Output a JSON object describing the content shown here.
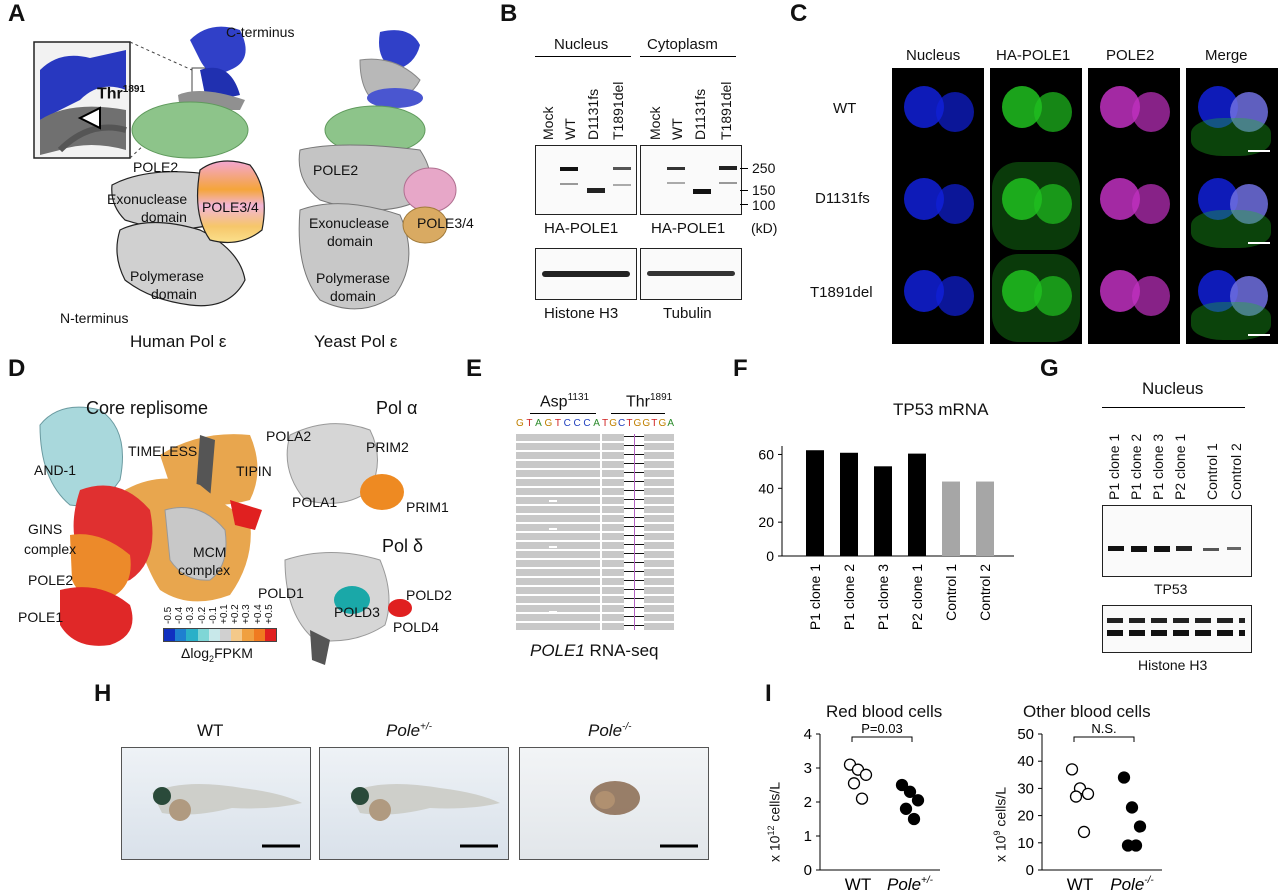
{
  "panels": {
    "A": "A",
    "B": "B",
    "C": "C",
    "D": "D",
    "E": "E",
    "F": "F",
    "G": "G",
    "H": "H",
    "I": "I"
  },
  "panelA": {
    "c_terminus": "C-terminus",
    "thr": "Thr",
    "thr_sup": "1891",
    "pole2_left": "POLE2",
    "pole2_right": "POLE2",
    "exo_left": "Exonuclease",
    "exo_left2": "domain",
    "pole34_left": "POLE3/4",
    "poly_left": "Polymerase",
    "poly_left2": "domain",
    "n_terminus": "N-terminus",
    "human": "Human Pol ε",
    "yeast": "Yeast Pol ε",
    "exo_right": "Exonuclease",
    "exo_right2": "domain",
    "pole34_right": "POLE3/4",
    "poly_right": "Polymerase",
    "poly_right2": "domain"
  },
  "panelB": {
    "nucleus": "Nucleus",
    "cytoplasm": "Cytoplasm",
    "lanes": [
      "Mock",
      "WT",
      "D1131fs",
      "T1891del"
    ],
    "markers": [
      "250",
      "150",
      "100"
    ],
    "kd": "(kD)",
    "label_ha1": "HA-POLE1",
    "label_ha2": "HA-POLE1",
    "label_h3": "Histone H3",
    "label_tub": "Tubulin"
  },
  "panelC": {
    "columns": [
      "Nucleus",
      "HA-POLE1",
      "POLE2",
      "Merge"
    ],
    "rows": [
      "WT",
      "D1131fs",
      "T1891del"
    ],
    "colors": {
      "nucleus": "#1020d8",
      "ha": "#20c020",
      "pole2": "#c030c0"
    }
  },
  "panelD": {
    "core": "Core replisome",
    "and1": "AND-1",
    "timeless": "TIMELESS",
    "tipin": "TIPIN",
    "gins": "GINS",
    "gins2": "complex",
    "mcm": "MCM",
    "mcm2": "complex",
    "pole2": "POLE2",
    "pole1": "POLE1",
    "pola": "Pol α",
    "pola2": "POLA2",
    "prim2": "PRIM2",
    "pola1": "POLA1",
    "prim1": "PRIM1",
    "pold": "Pol δ",
    "pold1": "POLD1",
    "pold3": "POLD3",
    "pold2": "POLD2",
    "pold4": "POLD4",
    "scale_ticks": [
      "-0.5",
      "-0.4",
      "-0.3",
      "-0.2",
      "-0.1",
      "+0.1",
      "+0.2",
      "+0.3",
      "+0.4",
      "+0.5"
    ],
    "scale_colors": [
      "#1030c0",
      "#1e7fd0",
      "#2ab0c8",
      "#7fd6d6",
      "#c8e8ea",
      "#d0d0d0",
      "#f4c98a",
      "#f0a040",
      "#f07a20",
      "#e02020"
    ],
    "scale_label": "Δlog",
    "scale_sub": "2",
    "scale_label2": "FPKM"
  },
  "panelE": {
    "asp": "Asp",
    "asp_sup": "1131",
    "thr": "Thr",
    "thr_sup": "1891",
    "seq1": [
      "G",
      "T",
      "A",
      "G",
      "T",
      "C",
      "C",
      "C",
      "A"
    ],
    "seq2": [
      "T",
      "G",
      "C",
      "T",
      "G",
      "G",
      "T",
      "G",
      "A"
    ],
    "caption_italic": "POLE1",
    "caption": " RNA-seq"
  },
  "panelF": {
    "title": "TP53 mRNA",
    "y_ticks": [
      "0",
      "20",
      "40",
      "60"
    ],
    "categories": [
      "P1 clone 1",
      "P1 clone 2",
      "P1 clone 3",
      "P2 clone 1",
      "Control 1",
      "Control 2"
    ]
  },
  "panelG": {
    "title": "Nucleus",
    "lanes": [
      "P1 clone 1",
      "P1 clone 2",
      "P1 clone 3",
      "P2 clone 1",
      "Control 1",
      "Control 2"
    ],
    "tp53": "TP53",
    "h3": "Histone H3"
  },
  "panelH": {
    "wt": "WT",
    "het": "Pole",
    "het_sup": "+/-",
    "ko": "Pole",
    "ko_sup": "-/-"
  },
  "panelI": {
    "title_left": "Red blood cells",
    "title_right": "Other blood cells",
    "pval": "P=0.03",
    "ns": "N.S.",
    "ylabel_left": "x 10",
    "ylabel_left_sup": "12",
    "ylabel_left_tail": " cells/L",
    "ylabel_right": "x 10",
    "ylabel_right_sup": "9",
    "ylabel_right_tail": " cells/L",
    "left_ticks": [
      "0",
      "1",
      "2",
      "3",
      "4"
    ],
    "right_ticks": [
      "0",
      "10",
      "20",
      "30",
      "40",
      "50"
    ],
    "x_wt": "WT",
    "x_het": "Pole",
    "x_het_sup": "+/-",
    "x_wt2": "WT",
    "x_ko": "Pole",
    "x_ko_sup": "-/-"
  },
  "chart_data": [
    {
      "type": "bar",
      "title": "TP53 mRNA",
      "categories": [
        "P1 clone 1",
        "P1 clone 2",
        "P1 clone 3",
        "P2 clone 1",
        "Control 1",
        "Control 2"
      ],
      "values": [
        62.5,
        61,
        53,
        60.5,
        44,
        44
      ],
      "colors": [
        "#000000",
        "#000000",
        "#000000",
        "#000000",
        "#a6a6a6",
        "#a6a6a6"
      ],
      "ylim": [
        0,
        65
      ],
      "yticks": [
        0,
        20,
        40,
        60
      ]
    },
    {
      "type": "scatter",
      "title": "Red blood cells",
      "ylabel": "x 10^12 cells/L",
      "ylim": [
        0,
        4
      ],
      "series": [
        {
          "name": "WT",
          "filled": false,
          "values": [
            3.1,
            2.95,
            2.8,
            2.55,
            2.1
          ]
        },
        {
          "name": "Pole+/-",
          "filled": true,
          "values": [
            2.5,
            2.3,
            2.05,
            1.8,
            1.5
          ]
        }
      ],
      "annotation": "P=0.03"
    },
    {
      "type": "scatter",
      "title": "Other blood cells",
      "ylabel": "x 10^9 cells/L",
      "ylim": [
        0,
        50
      ],
      "series": [
        {
          "name": "WT",
          "filled": false,
          "values": [
            37,
            30,
            28,
            27,
            14
          ]
        },
        {
          "name": "Pole-/-",
          "filled": true,
          "values": [
            34,
            23,
            16,
            9,
            9
          ]
        }
      ],
      "annotation": "N.S."
    }
  ]
}
